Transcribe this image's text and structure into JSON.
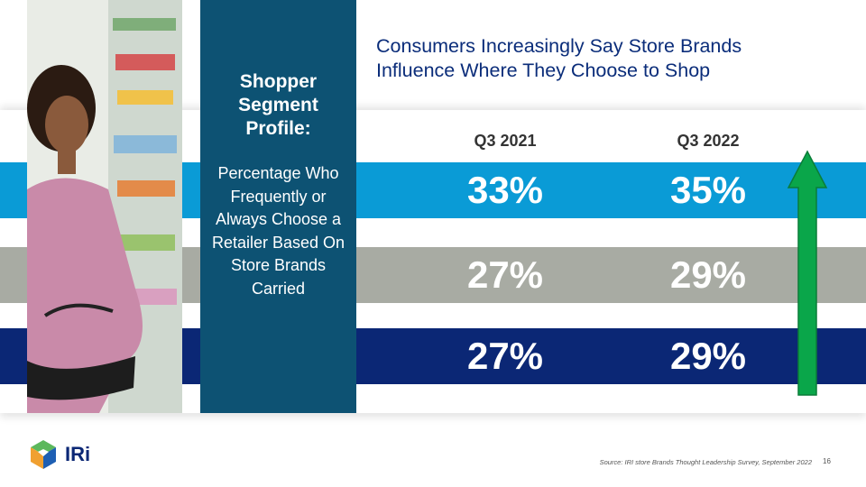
{
  "profile": {
    "title": "Shopper Segment Profile:",
    "description": "Percentage Who Frequently or Always Choose a Retailer Based On Store Brands Carried"
  },
  "headline": "Consumers Increasingly Say Store Brands Influence Where They Choose to Shop",
  "columns": [
    "Q3 2021",
    "Q3 2022"
  ],
  "rows": [
    {
      "color": "#0a9bd6",
      "values": [
        "33%",
        "35%"
      ]
    },
    {
      "color": "#a8aba3",
      "values": [
        "27%",
        "29%"
      ]
    },
    {
      "color": "#0b2775",
      "values": [
        "27%",
        "29%"
      ]
    }
  ],
  "trend_icon": "up-arrow-icon",
  "trend_color": "#0aa64a",
  "logo": {
    "text": "IRi",
    "icon": "cube-logo-icon"
  },
  "source": "Source: IRI store Brands Thought Leadership Survey, September 2022",
  "page_number": "16"
}
